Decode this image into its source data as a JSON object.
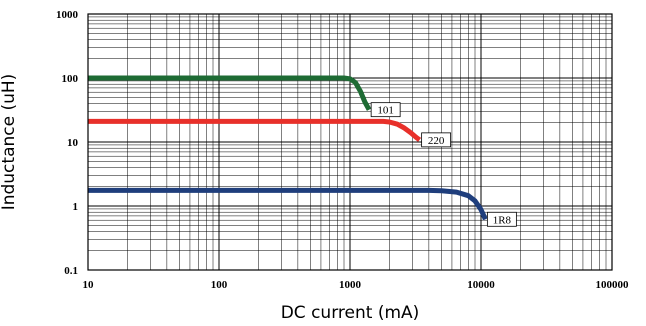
{
  "chart_data": {
    "type": "line",
    "xlabel": "DC current (mA)",
    "ylabel": "Inductance (uH)",
    "xscale": "log",
    "yscale": "log",
    "xlim": [
      10,
      100000
    ],
    "ylim": [
      0.1,
      1000
    ],
    "x_ticks": [
      10,
      100,
      1000,
      10000,
      100000
    ],
    "x_tick_labels": [
      "10",
      "100",
      "1000",
      "10000",
      "100000"
    ],
    "y_ticks": [
      0.1,
      1,
      10,
      100,
      1000
    ],
    "y_tick_labels": [
      "0.1",
      "1",
      "10",
      "100",
      "1000"
    ],
    "grid": true,
    "legend": "inline labels at curve ends",
    "series": [
      {
        "name": "101",
        "color": "#1e6b34",
        "x": [
          10,
          500,
          900,
          1000,
          1100,
          1200,
          1300,
          1400
        ],
        "y": [
          100,
          100,
          100,
          97,
          85,
          62,
          42,
          32
        ]
      },
      {
        "name": "220",
        "color": "#e8302a",
        "x": [
          10,
          1000,
          1800,
          2000,
          2300,
          2600,
          2900,
          3200,
          3400
        ],
        "y": [
          21,
          21,
          21,
          20.5,
          19,
          16.5,
          14,
          11.8,
          10.8
        ]
      },
      {
        "name": "1R8",
        "color": "#1f3e7c",
        "x": [
          10,
          1000,
          4000,
          5000,
          6500,
          8000,
          9000,
          10000,
          10800
        ],
        "y": [
          1.75,
          1.75,
          1.75,
          1.73,
          1.65,
          1.45,
          1.2,
          0.88,
          0.62
        ]
      }
    ]
  }
}
